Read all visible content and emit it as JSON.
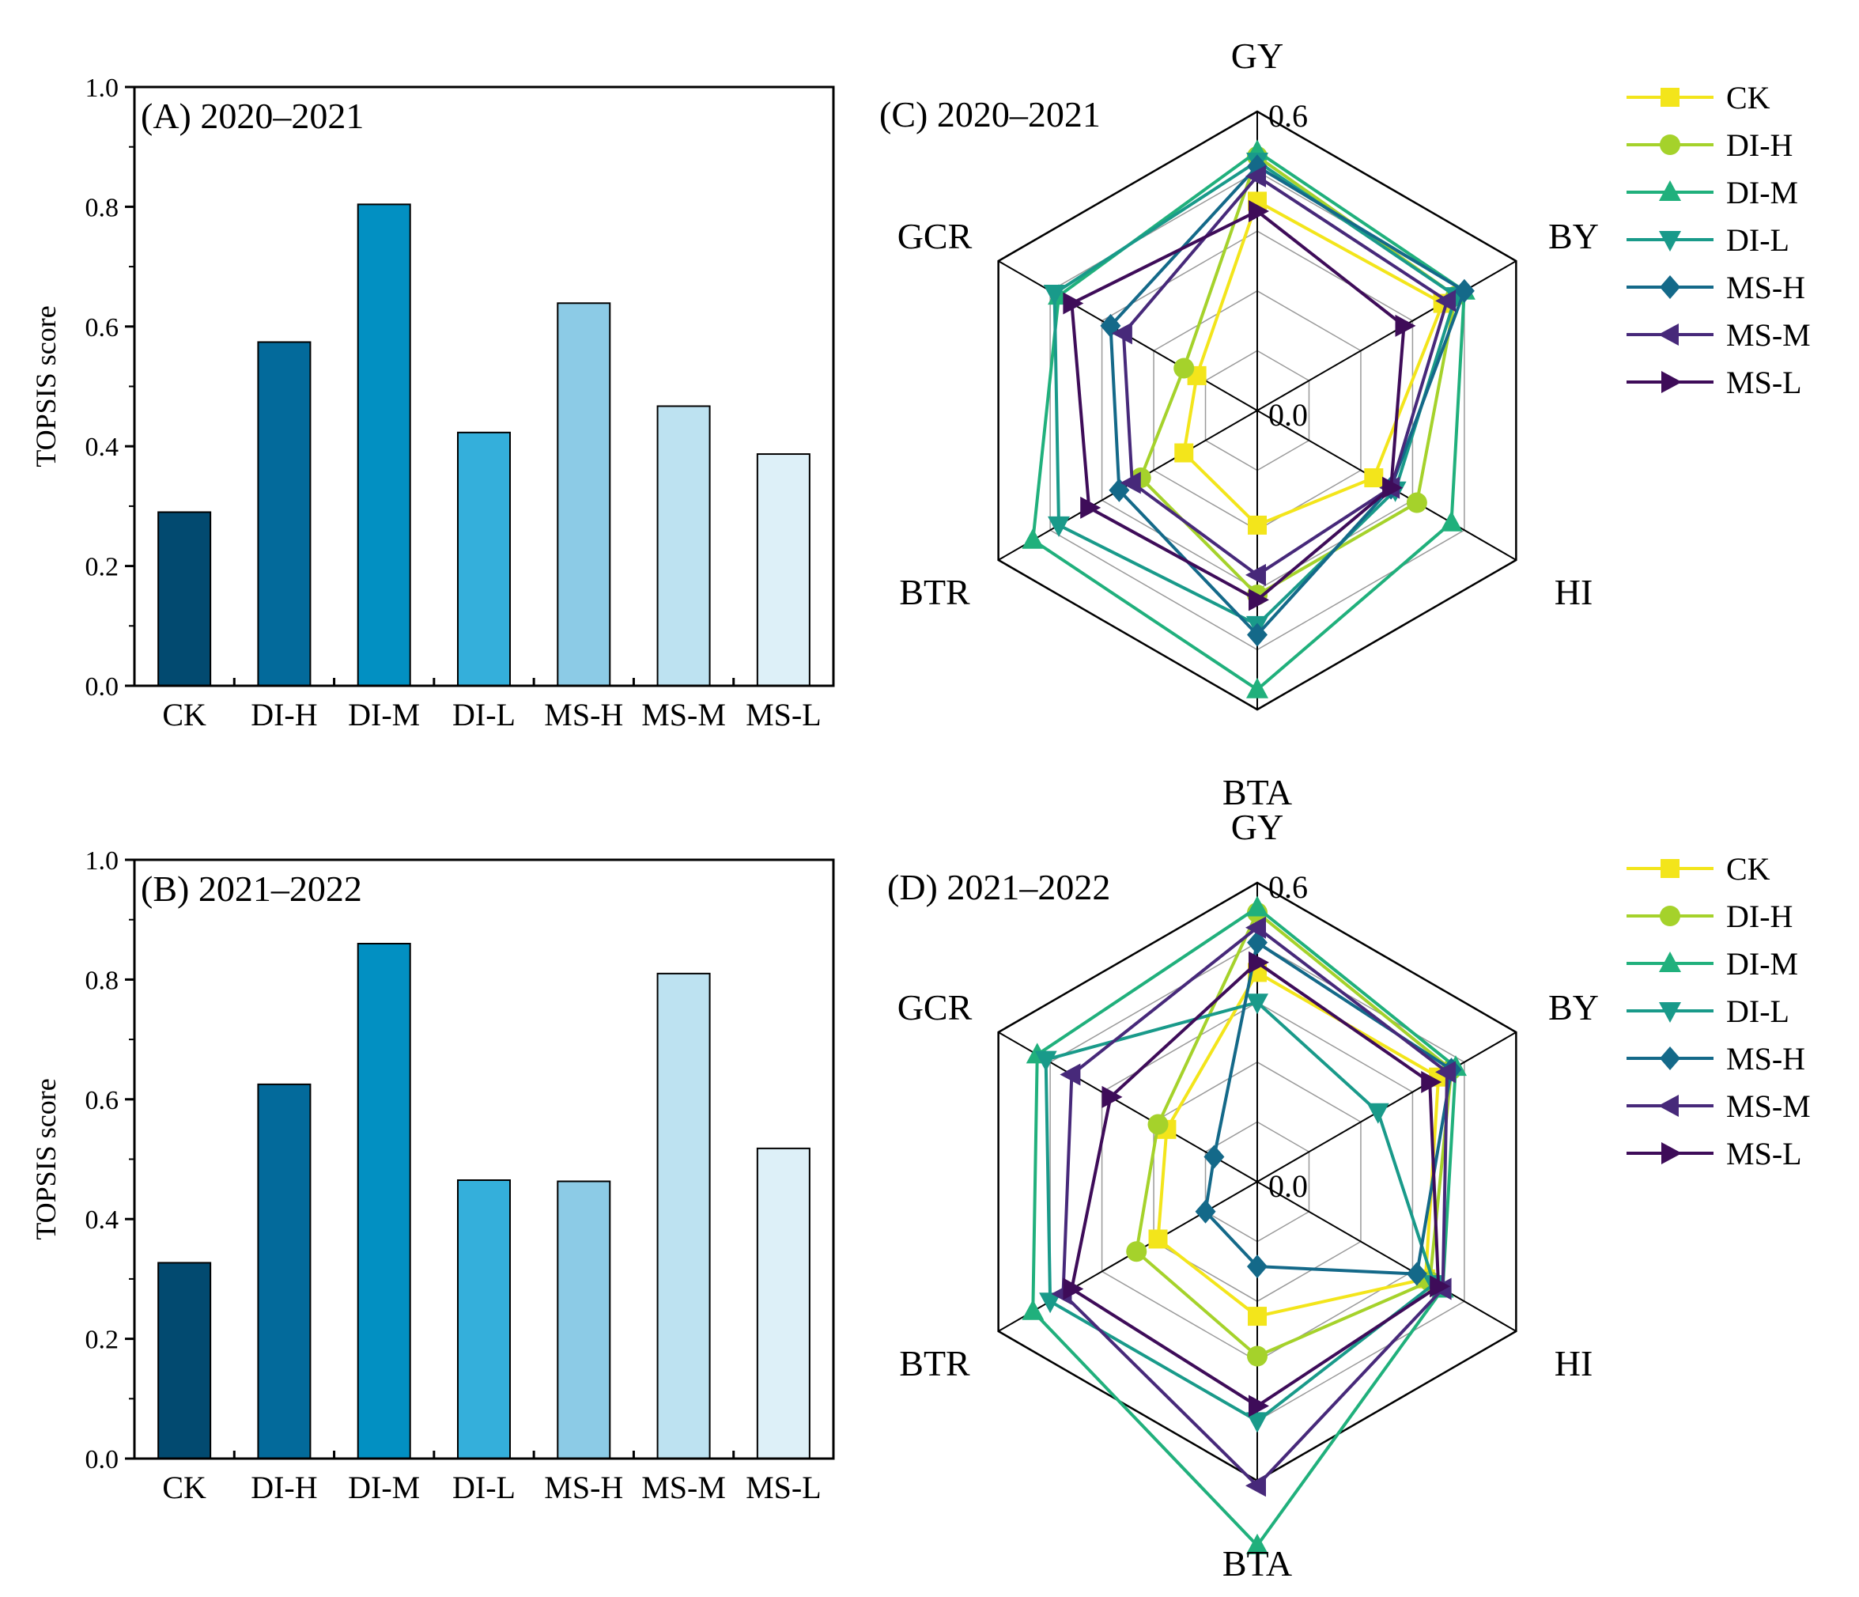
{
  "chart_data": [
    {
      "type": "bar",
      "id": "A",
      "title": "(A) 2020–2021",
      "ylabel": "TOPSIS score",
      "xlabel": "",
      "ylim": [
        0,
        1.0
      ],
      "yticks": [
        "0.0",
        "0.2",
        "0.4",
        "0.6",
        "0.8",
        "1.0"
      ],
      "categories": [
        "CK",
        "DI-H",
        "DI-M",
        "DI-L",
        "MS-H",
        "MS-M",
        "MS-L"
      ],
      "values": [
        0.29,
        0.574,
        0.804,
        0.423,
        0.639,
        0.467,
        0.387
      ],
      "colors": [
        "#024a70",
        "#036a9b",
        "#0290c2",
        "#34afdb",
        "#8ccbe6",
        "#bde2f1",
        "#ddf0f8"
      ]
    },
    {
      "type": "bar",
      "id": "B",
      "title": "(B) 2021–2022",
      "ylabel": "TOPSIS score",
      "xlabel": "",
      "ylim": [
        0,
        1.0
      ],
      "yticks": [
        "0.0",
        "0.2",
        "0.4",
        "0.6",
        "0.8",
        "1.0"
      ],
      "categories": [
        "CK",
        "DI-H",
        "DI-M",
        "DI-L",
        "MS-H",
        "MS-M",
        "MS-L"
      ],
      "values": [
        0.327,
        0.625,
        0.86,
        0.465,
        0.463,
        0.81,
        0.518
      ],
      "colors": [
        "#024a70",
        "#036a9b",
        "#0290c2",
        "#34afdb",
        "#8ccbe6",
        "#bde2f1",
        "#ddf0f8"
      ]
    },
    {
      "type": "radar",
      "id": "C",
      "title": "(C) 2020–2021",
      "axes": [
        "GY",
        "BY",
        "HI",
        "BTA",
        "BTR",
        "GCR"
      ],
      "rlim": [
        0,
        0.6
      ],
      "rticks": [
        "0.0",
        "0.6"
      ],
      "series": [
        {
          "name": "CK",
          "color": "#f3e51b",
          "marker": "square",
          "values": [
            0.42,
            0.43,
            0.27,
            0.23,
            0.17,
            0.14
          ]
        },
        {
          "name": "DI-H",
          "color": "#a5d22b",
          "marker": "circle",
          "values": [
            0.51,
            0.46,
            0.37,
            0.37,
            0.27,
            0.17
          ]
        },
        {
          "name": "DI-M",
          "color": "#20b07c",
          "marker": "triangle-up",
          "values": [
            0.52,
            0.48,
            0.45,
            0.56,
            0.52,
            0.46
          ]
        },
        {
          "name": "DI-L",
          "color": "#199a8a",
          "marker": "triangle-down",
          "values": [
            0.5,
            0.46,
            0.32,
            0.43,
            0.46,
            0.47
          ]
        },
        {
          "name": "MS-H",
          "color": "#146989",
          "marker": "diamond",
          "values": [
            0.49,
            0.48,
            0.31,
            0.45,
            0.32,
            0.34
          ]
        },
        {
          "name": "MS-M",
          "color": "#47297a",
          "marker": "triangle-left",
          "values": [
            0.47,
            0.44,
            0.31,
            0.33,
            0.29,
            0.31
          ]
        },
        {
          "name": "MS-L",
          "color": "#3e0c59",
          "marker": "triangle-right",
          "values": [
            0.4,
            0.34,
            0.31,
            0.38,
            0.39,
            0.43
          ]
        }
      ]
    },
    {
      "type": "radar",
      "id": "D",
      "title": "(D) 2021–2022",
      "axes": [
        "GY",
        "BY",
        "HI",
        "BTA",
        "BTR",
        "GCR"
      ],
      "rlim": [
        0,
        0.6
      ],
      "rticks": [
        "0.0",
        "0.6"
      ],
      "series": [
        {
          "name": "CK",
          "color": "#f3e51b",
          "marker": "square",
          "values": [
            0.42,
            0.42,
            0.39,
            0.27,
            0.23,
            0.21
          ]
        },
        {
          "name": "DI-H",
          "color": "#a5d22b",
          "marker": "circle",
          "values": [
            0.54,
            0.45,
            0.4,
            0.35,
            0.28,
            0.23
          ]
        },
        {
          "name": "DI-M",
          "color": "#20b07c",
          "marker": "triangle-up",
          "values": [
            0.55,
            0.46,
            0.43,
            0.73,
            0.52,
            0.51
          ]
        },
        {
          "name": "DI-L",
          "color": "#199a8a",
          "marker": "triangle-down",
          "values": [
            0.36,
            0.28,
            0.41,
            0.48,
            0.48,
            0.49
          ]
        },
        {
          "name": "MS-H",
          "color": "#146989",
          "marker": "diamond",
          "values": [
            0.48,
            0.45,
            0.37,
            0.17,
            0.12,
            0.1
          ]
        },
        {
          "name": "MS-M",
          "color": "#47297a",
          "marker": "triangle-left",
          "values": [
            0.51,
            0.44,
            0.43,
            0.61,
            0.45,
            0.43
          ]
        },
        {
          "name": "MS-L",
          "color": "#3e0c59",
          "marker": "triangle-right",
          "values": [
            0.44,
            0.4,
            0.42,
            0.45,
            0.43,
            0.34
          ]
        }
      ]
    }
  ]
}
